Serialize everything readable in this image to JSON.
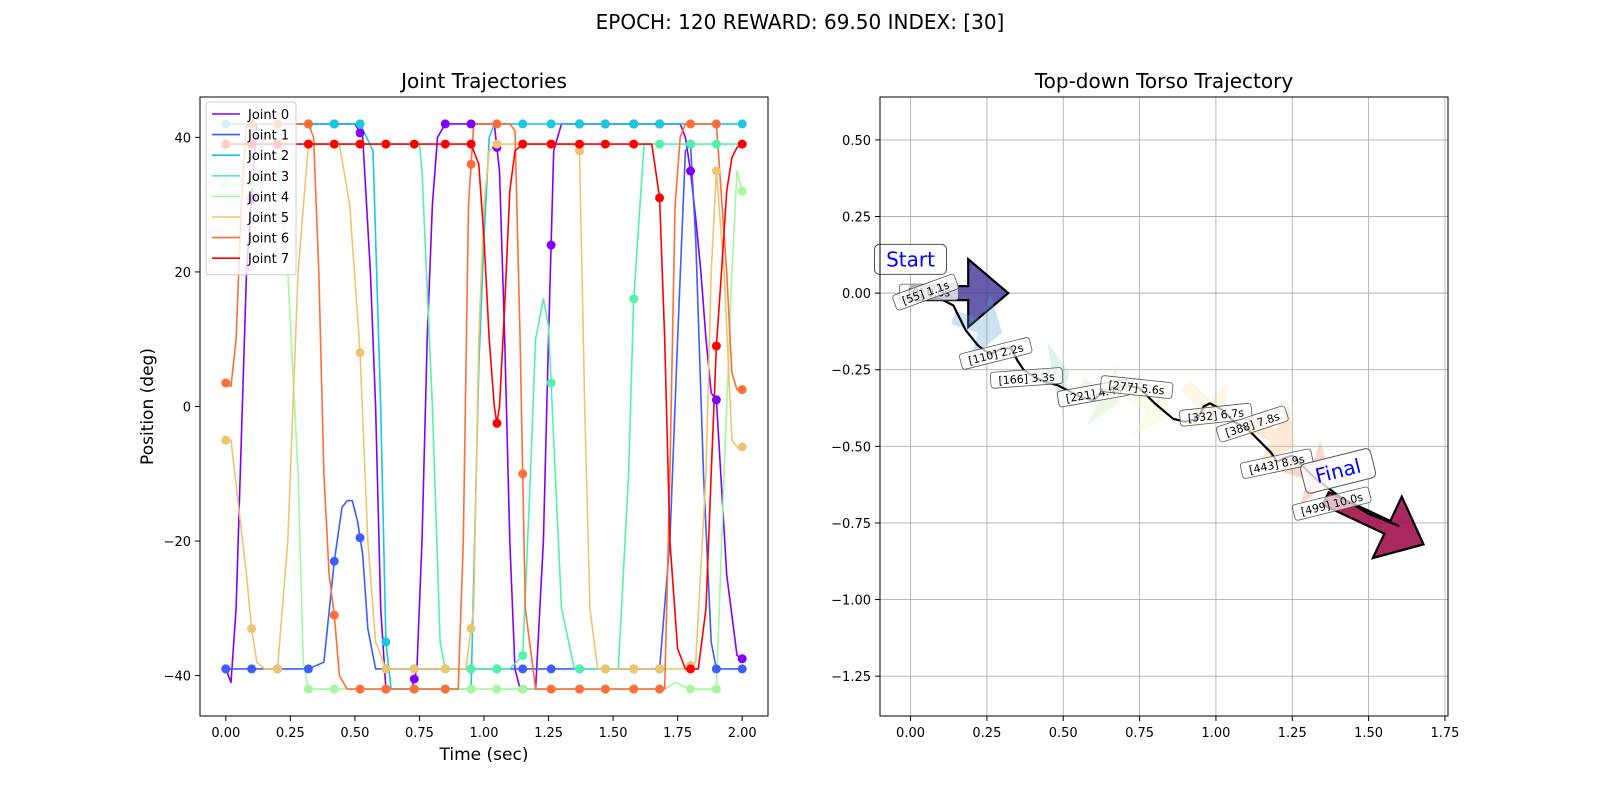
{
  "figure": {
    "suptitle": "EPOCH: 120 REWARD:  69.50 INDEX: [30]"
  },
  "chart_data": [
    {
      "type": "line",
      "title": "Joint Trajectories",
      "xlabel": "Time (sec)",
      "ylabel": "Position (deg)",
      "xlim": [
        -0.1,
        2.1
      ],
      "ylim": [
        -46,
        46
      ],
      "x_ticks": [
        "0.00",
        "0.25",
        "0.50",
        "0.75",
        "1.00",
        "1.25",
        "1.50",
        "1.75",
        "2.00"
      ],
      "y_ticks": [
        "40",
        "20",
        "0",
        "−20",
        "−40"
      ],
      "grid": false,
      "legend": "top-left",
      "marker_times": [
        0.0,
        0.1,
        0.2,
        0.32,
        0.42,
        0.52,
        0.62,
        0.73,
        0.85,
        0.95,
        1.05,
        1.15,
        1.26,
        1.37,
        1.47,
        1.58,
        1.68,
        1.8,
        1.9,
        2.0
      ],
      "series": [
        {
          "name": "Joint 0",
          "color": "#8000ff",
          "x": [
            0.0,
            0.02,
            0.04,
            0.06,
            0.08,
            0.12,
            0.2,
            0.3,
            0.5,
            0.53,
            0.56,
            0.58,
            0.6,
            0.62,
            0.72,
            0.74,
            0.76,
            0.78,
            0.8,
            0.82,
            0.85,
            0.96,
            1.04,
            1.06,
            1.08,
            1.1,
            1.12,
            1.14,
            1.2,
            1.23,
            1.25,
            1.27,
            1.3,
            1.76,
            1.78,
            1.8,
            1.82,
            1.84,
            1.86,
            1.88,
            1.9,
            1.94,
            1.98,
            2.0
          ],
          "y": [
            -39,
            -41,
            -30,
            -5,
            20,
            42,
            42,
            42,
            42,
            40,
            20,
            0,
            -30,
            -42,
            -42,
            -39,
            -20,
            10,
            30,
            40,
            42,
            42,
            42,
            35,
            10,
            -20,
            -39,
            -42,
            -42,
            -20,
            10,
            38,
            42,
            42,
            40,
            35,
            28,
            20,
            10,
            2,
            1,
            -25,
            -37,
            -37.5
          ]
        },
        {
          "name": "Joint 1",
          "color": "#3c5dff",
          "x": [
            0.0,
            0.1,
            0.2,
            0.32,
            0.38,
            0.42,
            0.45,
            0.47,
            0.49,
            0.51,
            0.53,
            0.55,
            0.58,
            0.62,
            0.75,
            0.95,
            1.15,
            1.3,
            1.5,
            1.68,
            1.72,
            1.75,
            1.78,
            1.8,
            1.82,
            1.85,
            1.88,
            1.9,
            2.0
          ],
          "y": [
            -39,
            -39,
            -39,
            -39,
            -38,
            -23,
            -15,
            -14,
            -14,
            -17,
            -22,
            -33,
            -39,
            -39,
            -39,
            -39,
            -39,
            -39,
            -39,
            -39,
            -20,
            10,
            38,
            39,
            25,
            -10,
            -35,
            -39,
            -39
          ]
        },
        {
          "name": "Joint 2",
          "color": "#1ac8df",
          "x": [
            0.0,
            0.1,
            0.2,
            0.3,
            0.42,
            0.52,
            0.57,
            0.6,
            0.62,
            0.64,
            0.7,
            0.8,
            0.9,
            0.95,
            0.98,
            1.0,
            1.02,
            1.04,
            1.15,
            1.3,
            1.5,
            1.7,
            1.9,
            2.0
          ],
          "y": [
            42,
            42,
            42,
            42,
            42,
            42,
            38,
            0,
            -35,
            -42,
            -42,
            -42,
            -42,
            -42,
            6,
            25,
            40,
            42,
            42,
            42,
            42,
            42,
            42,
            42
          ]
        },
        {
          "name": "Joint 3",
          "color": "#52f1ad",
          "x": [
            0.0,
            0.2,
            0.3,
            0.5,
            0.62,
            0.7,
            0.75,
            0.76,
            0.8,
            0.83,
            0.85,
            0.95,
            1.05,
            1.1,
            1.15,
            1.18,
            1.2,
            1.23,
            1.25,
            1.27,
            1.3,
            1.35,
            1.37,
            1.47,
            1.52,
            1.56,
            1.58,
            1.62,
            1.65,
            1.7,
            1.8,
            1.9,
            2.0
          ],
          "y": [
            39,
            39,
            39,
            39,
            39,
            39,
            39,
            35,
            0,
            -35,
            -39,
            -39,
            -39,
            -39,
            -37,
            -10,
            10,
            16,
            12,
            -5,
            -30,
            -39,
            -39,
            -39,
            -39,
            -10,
            16,
            39,
            39,
            39,
            39,
            39,
            39
          ]
        },
        {
          "name": "Joint 4",
          "color": "#a4f89f",
          "x": [
            0.0,
            0.06,
            0.1,
            0.15,
            0.2,
            0.24,
            0.28,
            0.3,
            0.32,
            0.42,
            0.52,
            0.62,
            0.8,
            1.0,
            1.2,
            1.4,
            1.6,
            1.7,
            1.74,
            1.8,
            1.9,
            1.93,
            1.96,
            1.98,
            2.0
          ],
          "y": [
            33,
            33,
            33,
            39,
            39,
            20,
            -10,
            -38,
            -42,
            -42,
            -42,
            -42,
            -42,
            -42,
            -42,
            -42,
            -42,
            -42,
            -41,
            -42,
            -42,
            -10,
            20,
            35,
            32
          ]
        },
        {
          "name": "Joint 5",
          "color": "#edc56f",
          "x": [
            0.0,
            0.02,
            0.05,
            0.08,
            0.1,
            0.12,
            0.15,
            0.2,
            0.24,
            0.28,
            0.32,
            0.36,
            0.4,
            0.44,
            0.48,
            0.52,
            0.55,
            0.58,
            0.62,
            0.8,
            0.93,
            0.96,
            0.98,
            1.0,
            1.02,
            1.05,
            1.2,
            1.35,
            1.37,
            1.39,
            1.41,
            1.44,
            1.47,
            1.6,
            1.7,
            1.74,
            1.78,
            1.82,
            1.86,
            1.88,
            1.9,
            1.93,
            1.96,
            1.98,
            2.0
          ],
          "y": [
            -5,
            -5,
            -15,
            -25,
            -33,
            -38,
            -39,
            -39,
            -20,
            20,
            39,
            39,
            39,
            39,
            30,
            8,
            -20,
            -35,
            -39,
            -39,
            -39,
            -30,
            10,
            30,
            38,
            39,
            39,
            39,
            38,
            0,
            -30,
            -39,
            -39,
            -39,
            -39,
            -39,
            -39,
            -38,
            -10,
            20,
            35,
            20,
            -5,
            -6,
            -6
          ]
        },
        {
          "name": "Joint 6",
          "color": "#ff6d38",
          "x": [
            0.0,
            0.02,
            0.04,
            0.06,
            0.08,
            0.12,
            0.2,
            0.32,
            0.34,
            0.36,
            0.38,
            0.4,
            0.42,
            0.44,
            0.47,
            0.52,
            0.62,
            0.73,
            0.85,
            0.9,
            0.92,
            0.94,
            0.96,
            1.05,
            1.1,
            1.12,
            1.14,
            1.16,
            1.2,
            1.26,
            1.37,
            1.5,
            1.68,
            1.7,
            1.72,
            1.74,
            1.76,
            1.78,
            1.82,
            1.9,
            1.94,
            1.96,
            1.98,
            2.0
          ],
          "y": [
            3.5,
            3,
            10,
            30,
            42,
            42,
            42,
            42,
            40,
            20,
            -10,
            -25,
            -31,
            -40,
            -42,
            -42,
            -42,
            -42,
            -42,
            -42,
            -20,
            30,
            42,
            42,
            42,
            41,
            10,
            -30,
            -42,
            -42,
            -42,
            -42,
            -42,
            -42,
            -10,
            30,
            40,
            42,
            42,
            42,
            20,
            5,
            2.5,
            2.5
          ]
        },
        {
          "name": "Joint 7",
          "color": "#ff0000",
          "x": [
            0.0,
            0.12,
            0.2,
            0.32,
            0.42,
            0.52,
            0.62,
            0.73,
            0.85,
            0.95,
            0.98,
            1.0,
            1.02,
            1.04,
            1.05,
            1.06,
            1.08,
            1.1,
            1.12,
            1.15,
            1.2,
            1.26,
            1.37,
            1.47,
            1.58,
            1.65,
            1.68,
            1.7,
            1.72,
            1.75,
            1.78,
            1.8,
            1.83,
            1.86,
            1.88,
            1.9,
            1.92,
            1.94,
            1.96,
            1.98,
            2.0
          ],
          "y": [
            39,
            39,
            39,
            39,
            39,
            39,
            39,
            39,
            39,
            39,
            36,
            25,
            10,
            0,
            -2.5,
            0,
            15,
            32,
            38,
            39,
            39,
            39,
            39,
            39,
            39,
            39,
            31,
            10,
            -20,
            -36,
            -39,
            -39,
            -39,
            -30,
            -10,
            9,
            20,
            32,
            37,
            38.5,
            39
          ]
        }
      ]
    },
    {
      "type": "scatter",
      "title": "Top-down Torso Trajectory",
      "xlabel": "",
      "ylabel": "",
      "xlim": [
        -0.1,
        1.76
      ],
      "ylim": [
        -1.38,
        0.64
      ],
      "x_ticks": [
        "0.00",
        "0.25",
        "0.50",
        "0.75",
        "1.00",
        "1.25",
        "1.50",
        "1.75"
      ],
      "y_ticks": [
        "0.50",
        "0.25",
        "0.00",
        "−0.25",
        "−0.50",
        "−0.75",
        "−1.00",
        "−1.25"
      ],
      "grid": true,
      "path": {
        "color": "#000000",
        "x": [
          0.0,
          0.05,
          0.1,
          0.14,
          0.16,
          0.18,
          0.22,
          0.26,
          0.3,
          0.33,
          0.35,
          0.37,
          0.4,
          0.44,
          0.48,
          0.52,
          0.56,
          0.6,
          0.62,
          0.65,
          0.7,
          0.75,
          0.8,
          0.86,
          0.9,
          0.94,
          0.96,
          0.98,
          1.02,
          1.06,
          1.1,
          1.14,
          1.18,
          1.2,
          1.22,
          1.25,
          1.28,
          1.32,
          1.36,
          1.4,
          1.45,
          1.5,
          1.55,
          1.6
        ],
        "y": [
          0.0,
          -0.01,
          -0.02,
          -0.04,
          -0.08,
          -0.12,
          -0.17,
          -0.2,
          -0.18,
          -0.18,
          -0.22,
          -0.25,
          -0.27,
          -0.29,
          -0.3,
          -0.32,
          -0.34,
          -0.35,
          -0.33,
          -0.31,
          -0.3,
          -0.31,
          -0.36,
          -0.41,
          -0.42,
          -0.41,
          -0.37,
          -0.36,
          -0.38,
          -0.42,
          -0.44,
          -0.48,
          -0.52,
          -0.55,
          -0.54,
          -0.53,
          -0.56,
          -0.6,
          -0.63,
          -0.66,
          -0.69,
          -0.72,
          -0.74,
          -0.76
        ]
      },
      "arrows": [
        {
          "x": 0.0,
          "y": 0.0,
          "dx": 0.32,
          "dy": 0.0,
          "color": "#3f3597",
          "alpha": 0.8,
          "outlined": true
        },
        {
          "x": 0.14,
          "y": -0.08,
          "dx": 0.16,
          "dy": -0.05,
          "color": "#5d9dd0",
          "alpha": 0.3,
          "outlined": false
        },
        {
          "x": 0.4,
          "y": -0.28,
          "dx": 0.12,
          "dy": 0.02,
          "color": "#8dd3b4",
          "alpha": 0.3,
          "outlined": false
        },
        {
          "x": 0.56,
          "y": -0.3,
          "dx": 0.12,
          "dy": -0.06,
          "color": "#c3e8a7",
          "alpha": 0.3,
          "outlined": false
        },
        {
          "x": 0.72,
          "y": -0.33,
          "dx": 0.12,
          "dy": -0.08,
          "color": "#eef1b4",
          "alpha": 0.3,
          "outlined": false
        },
        {
          "x": 0.9,
          "y": -0.3,
          "dx": 0.12,
          "dy": -0.12,
          "color": "#fee4aa",
          "alpha": 0.3,
          "outlined": false
        },
        {
          "x": 1.1,
          "y": -0.42,
          "dx": 0.16,
          "dy": -0.08,
          "color": "#fdbf84",
          "alpha": 0.35,
          "outlined": false
        },
        {
          "x": 1.22,
          "y": -0.56,
          "dx": 0.16,
          "dy": -0.05,
          "color": "#f38c6b",
          "alpha": 0.35,
          "outlined": false
        },
        {
          "x": 1.36,
          "y": -0.67,
          "dx": 0.32,
          "dy": -0.15,
          "color": "#a0124d",
          "alpha": 0.9,
          "outlined": true
        }
      ],
      "labels": [
        {
          "text": "[0] 0.0s",
          "x": 0.06,
          "y": 0.0,
          "rotation": 0
        },
        {
          "text": "[55] 1.1s",
          "x": 0.05,
          "y": 0.0,
          "rotation": 20
        },
        {
          "text": "[110] 2.2s",
          "x": 0.28,
          "y": -0.2,
          "rotation": 14
        },
        {
          "text": "[166] 3.3s",
          "x": 0.38,
          "y": -0.28,
          "rotation": 4
        },
        {
          "text": "[221] 4.4s",
          "x": 0.6,
          "y": -0.33,
          "rotation": 10
        },
        {
          "text": "[277] 5.6s",
          "x": 0.74,
          "y": -0.31,
          "rotation": -6
        },
        {
          "text": "[332] 6.7s",
          "x": 1.0,
          "y": -0.4,
          "rotation": 6
        },
        {
          "text": "[388] 7.8s",
          "x": 1.12,
          "y": -0.43,
          "rotation": 18
        },
        {
          "text": "[443] 8.9s",
          "x": 1.2,
          "y": -0.56,
          "rotation": 12
        },
        {
          "text": "[499] 10.0s",
          "x": 1.38,
          "y": -0.69,
          "rotation": 14
        }
      ],
      "annotations": [
        {
          "text": "Start",
          "x": 0.0,
          "y": 0.11,
          "rotation": 0,
          "color": "#0000ff"
        },
        {
          "text": "Final",
          "x": 1.4,
          "y": -0.58,
          "rotation": 14,
          "color": "#0000ff"
        }
      ]
    }
  ]
}
